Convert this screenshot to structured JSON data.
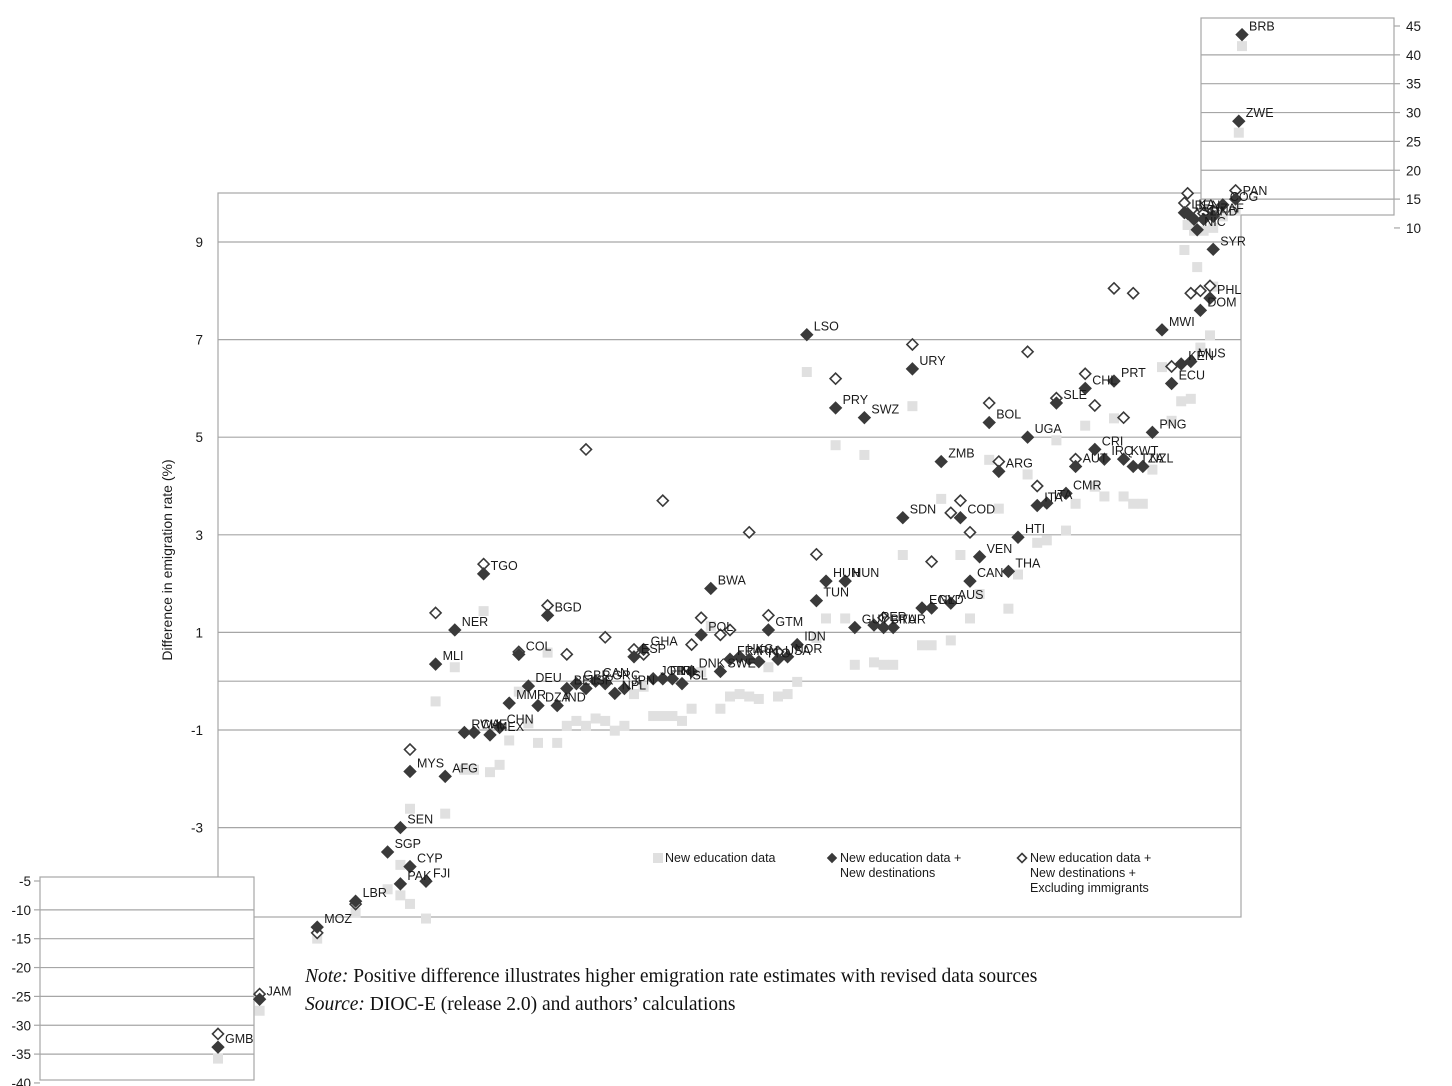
{
  "chart_data": {
    "type": "scatter",
    "ylabel": "Difference in emigration rate (%)",
    "main_panel": {
      "ylim": [
        -5,
        10
      ],
      "yticks": [
        9,
        7,
        5,
        3,
        1,
        -1,
        -3
      ],
      "gridlines": [
        9,
        7,
        5,
        3,
        1,
        -1,
        -3
      ],
      "grid": true
    },
    "inset_top": {
      "ylim": [
        10,
        45
      ],
      "yticks": [
        45,
        40,
        35,
        30,
        25,
        20,
        15,
        10
      ]
    },
    "inset_bottom": {
      "ylim": [
        -40,
        -5
      ],
      "yticks": [
        -5,
        -10,
        -15,
        -20,
        -25,
        -30,
        -35,
        -40
      ]
    },
    "legend": {
      "position": "bottom-right",
      "entries": [
        {
          "key": "new_education",
          "line1": "New education data",
          "line2": "",
          "line3": "",
          "color": "#e0e0e0",
          "marker": "square"
        },
        {
          "key": "new_destinations",
          "line1": "New education data +",
          "line2": "New destinations",
          "line3": "",
          "color": "#3a3a3a",
          "marker": "diamond-filled"
        },
        {
          "key": "excluding_immigrants",
          "line1": "New education data +",
          "line2": "New destinations +",
          "line3": "Excluding immigrants",
          "color": "#3a3a3a",
          "marker": "diamond-open"
        }
      ]
    },
    "series_note": "Countries ordered along x by 'New education data' value; each labelled point shows the 'New education data + New destinations' estimate; open diamonds show 'Excluding immigrants'.",
    "labeled_points": [
      {
        "label": "GMB",
        "panel": "bottom",
        "x": 0,
        "y": -33.8,
        "excl": -31.5
      },
      {
        "label": "JAM",
        "panel": "bottom",
        "x": 13,
        "y": -25.5,
        "excl": -24.6
      },
      {
        "label": "MOZ",
        "panel": "bottom",
        "x": 31,
        "y": -13.0,
        "excl": -14.0
      },
      {
        "label": "LBR",
        "panel": "bottom",
        "x": 43,
        "y": -8.5,
        "excl": -9.0
      },
      {
        "label": "PAK",
        "panel": "bottom",
        "x": 57,
        "y": -5.5,
        "excl": null
      },
      {
        "label": "FJI",
        "panel": "main",
        "x": 65,
        "y": -4.1,
        "excl": null
      },
      {
        "label": "CYP",
        "panel": "main",
        "x": 60,
        "y": -3.8,
        "excl": null
      },
      {
        "label": "SGP",
        "panel": "main",
        "x": 53,
        "y": -3.5,
        "excl": null
      },
      {
        "label": "SEN",
        "panel": "main",
        "x": 57,
        "y": -3.0,
        "excl": null
      },
      {
        "label": "MYS",
        "panel": "main",
        "x": 60,
        "y": -1.85,
        "excl": -1.4
      },
      {
        "label": "AFG",
        "panel": "main",
        "x": 71,
        "y": -1.95,
        "excl": null
      },
      {
        "label": "RWA",
        "panel": "main",
        "x": 77,
        "y": -1.05,
        "excl": null
      },
      {
        "label": "CHE",
        "panel": "main",
        "x": 80,
        "y": -1.05,
        "excl": null
      },
      {
        "label": "MEX",
        "panel": "main",
        "x": 85,
        "y": -1.1,
        "excl": null
      },
      {
        "label": "CHN",
        "panel": "main",
        "x": 88,
        "y": -0.95,
        "excl": null
      },
      {
        "label": "MMR",
        "panel": "main",
        "x": 91,
        "y": -0.45,
        "excl": null
      },
      {
        "label": "MLI",
        "panel": "main",
        "x": 68,
        "y": 0.35,
        "excl": 1.4
      },
      {
        "label": "NER",
        "panel": "main",
        "x": 74,
        "y": 1.05,
        "excl": null
      },
      {
        "label": "TGO",
        "panel": "main",
        "x": 83,
        "y": 2.2,
        "excl": 2.4
      },
      {
        "label": "COL",
        "panel": "main",
        "x": 94,
        "y": 0.55,
        "excl": 0.6
      },
      {
        "label": "DEU",
        "panel": "main",
        "x": 97,
        "y": -0.1,
        "excl": null
      },
      {
        "label": "DZA",
        "panel": "main",
        "x": 100,
        "y": -0.5,
        "excl": null
      },
      {
        "label": "BGD",
        "panel": "main",
        "x": 103,
        "y": 1.35,
        "excl": 1.55
      },
      {
        "label": "IND",
        "panel": "main",
        "x": 106,
        "y": -0.5,
        "excl": null
      },
      {
        "label": "BEL",
        "panel": "main",
        "x": 109,
        "y": -0.15,
        "excl": 0.55
      },
      {
        "label": "GBR",
        "panel": "main",
        "x": 112,
        "y": -0.05,
        "excl": null
      },
      {
        "label": "ISR",
        "panel": "main",
        "x": 115,
        "y": -0.15,
        "excl": 4.75
      },
      {
        "label": "CAN",
        "panel": "main",
        "x": 118,
        "y": 0.0,
        "excl": null
      },
      {
        "label": "GRC",
        "panel": "main",
        "x": 121,
        "y": -0.05,
        "excl": 0.9
      },
      {
        "label": "NPL",
        "panel": "main",
        "x": 124,
        "y": -0.25,
        "excl": null
      },
      {
        "label": "JPN",
        "panel": "main",
        "x": 127,
        "y": -0.15,
        "excl": null
      },
      {
        "label": "ESP",
        "panel": "main",
        "x": 130,
        "y": 0.5,
        "excl": 0.65
      },
      {
        "label": "GHA",
        "panel": "main",
        "x": 133,
        "y": 0.65,
        "excl": 0.55
      },
      {
        "label": "JOR",
        "panel": "main",
        "x": 136,
        "y": 0.05,
        "excl": null
      },
      {
        "label": "FIN",
        "panel": "main",
        "x": 139,
        "y": 0.05,
        "excl": 3.7
      },
      {
        "label": "IRL",
        "panel": "main",
        "x": 142,
        "y": 0.05,
        "excl": null
      },
      {
        "label": "ISL",
        "panel": "main",
        "x": 145,
        "y": -0.05,
        "excl": null
      },
      {
        "label": "DNK",
        "panel": "main",
        "x": 148,
        "y": 0.2,
        "excl": 0.75
      },
      {
        "label": "POL",
        "panel": "main",
        "x": 151,
        "y": 0.95,
        "excl": 1.3
      },
      {
        "label": "BWA",
        "panel": "main",
        "x": 154,
        "y": 1.9,
        "excl": null
      },
      {
        "label": "SWE",
        "panel": "main",
        "x": 157,
        "y": 0.2,
        "excl": 0.95
      },
      {
        "label": "FRA",
        "panel": "main",
        "x": 160,
        "y": 0.45,
        "excl": 1.05
      },
      {
        "label": "HKG",
        "panel": "main",
        "x": 163,
        "y": 0.5,
        "excl": null
      },
      {
        "label": "IRN",
        "panel": "main",
        "x": 166,
        "y": 0.45,
        "excl": 3.05
      },
      {
        "label": "TTO",
        "panel": "main",
        "x": 169,
        "y": 0.4,
        "excl": null
      },
      {
        "label": "GTM",
        "panel": "main",
        "x": 172,
        "y": 1.05,
        "excl": 1.35
      },
      {
        "label": "USA",
        "panel": "main",
        "x": 175,
        "y": 0.45,
        "excl": 0.6
      },
      {
        "label": "NOR",
        "panel": "main",
        "x": 178,
        "y": 0.5,
        "excl": null
      },
      {
        "label": "IDN",
        "panel": "main",
        "x": 181,
        "y": 0.75,
        "excl": null
      },
      {
        "label": "LSO",
        "panel": "main",
        "x": 184,
        "y": 7.1,
        "excl": null
      },
      {
        "label": "TUN",
        "panel": "main",
        "x": 187,
        "y": 1.65,
        "excl": 2.6
      },
      {
        "label": "HUN",
        "panel": "main",
        "x": 190,
        "y": 2.05,
        "excl": null
      },
      {
        "label": "PRY",
        "panel": "main",
        "x": 193,
        "y": 5.6,
        "excl": 6.2
      },
      {
        "label": "HUN2",
        "panel": "main",
        "x": 196,
        "y": 2.05,
        "excl": null
      },
      {
        "label": "GUY",
        "panel": "main",
        "x": 199,
        "y": 1.1,
        "excl": null
      },
      {
        "label": "SWZ",
        "panel": "main",
        "x": 202,
        "y": 5.4,
        "excl": null
      },
      {
        "label": "PER",
        "panel": "main",
        "x": 205,
        "y": 1.15,
        "excl": null
      },
      {
        "label": "BRA",
        "panel": "main",
        "x": 208,
        "y": 1.1,
        "excl": 1.3
      },
      {
        "label": "TUR",
        "panel": "main",
        "x": 211,
        "y": 1.1,
        "excl": null
      },
      {
        "label": "SDN",
        "panel": "main",
        "x": 214,
        "y": 3.35,
        "excl": null
      },
      {
        "label": "URY",
        "panel": "main",
        "x": 217,
        "y": 6.4,
        "excl": 6.9
      },
      {
        "label": "EGY",
        "panel": "main",
        "x": 220,
        "y": 1.5,
        "excl": null
      },
      {
        "label": "NLD",
        "panel": "main",
        "x": 223,
        "y": 1.5,
        "excl": 2.45
      },
      {
        "label": "ZMB",
        "panel": "main",
        "x": 226,
        "y": 4.5,
        "excl": null
      },
      {
        "label": "AUS",
        "panel": "main",
        "x": 229,
        "y": 1.6,
        "excl": 3.45
      },
      {
        "label": "COD",
        "panel": "main",
        "x": 232,
        "y": 3.35,
        "excl": 3.7
      },
      {
        "label": "CAN2",
        "panel": "main",
        "x": 235,
        "y": 2.05,
        "excl": 3.05
      },
      {
        "label": "VEN",
        "panel": "main",
        "x": 238,
        "y": 2.55,
        "excl": null
      },
      {
        "label": "BOL",
        "panel": "main",
        "x": 241,
        "y": 5.3,
        "excl": 5.7
      },
      {
        "label": "ARG",
        "panel": "main",
        "x": 244,
        "y": 4.3,
        "excl": 4.5
      },
      {
        "label": "THA",
        "panel": "main",
        "x": 247,
        "y": 2.25,
        "excl": null
      },
      {
        "label": "HTI",
        "panel": "main",
        "x": 250,
        "y": 2.95,
        "excl": null
      },
      {
        "label": "UGA",
        "panel": "main",
        "x": 253,
        "y": 5.0,
        "excl": 6.75
      },
      {
        "label": "ITA",
        "panel": "main",
        "x": 256,
        "y": 3.6,
        "excl": 4.0
      },
      {
        "label": "ITA2",
        "panel": "main",
        "x": 259,
        "y": 3.65,
        "excl": null
      },
      {
        "label": "SLE",
        "panel": "main",
        "x": 262,
        "y": 5.7,
        "excl": 5.8
      },
      {
        "label": "CMR",
        "panel": "main",
        "x": 265,
        "y": 3.85,
        "excl": null
      },
      {
        "label": "AUT",
        "panel": "main",
        "x": 268,
        "y": 4.4,
        "excl": 4.55
      },
      {
        "label": "CHL",
        "panel": "main",
        "x": 271,
        "y": 6.0,
        "excl": 6.3
      },
      {
        "label": "CRI",
        "panel": "main",
        "x": 274,
        "y": 4.75,
        "excl": 5.65
      },
      {
        "label": "IRQ",
        "panel": "main",
        "x": 277,
        "y": 4.55,
        "excl": null
      },
      {
        "label": "PRT",
        "panel": "main",
        "x": 280,
        "y": 6.15,
        "excl": 8.05
      },
      {
        "label": "KWT",
        "panel": "main",
        "x": 283,
        "y": 4.55,
        "excl": 5.4
      },
      {
        "label": "TZA",
        "panel": "main",
        "x": 286,
        "y": 4.4,
        "excl": 7.95
      },
      {
        "label": "NZL",
        "panel": "main",
        "x": 289,
        "y": 4.4,
        "excl": null
      },
      {
        "label": "PNG",
        "panel": "main",
        "x": 292,
        "y": 5.1,
        "excl": null
      },
      {
        "label": "MWI",
        "panel": "main",
        "x": 295,
        "y": 7.2,
        "excl": null
      },
      {
        "label": "ECU",
        "panel": "main",
        "x": 298,
        "y": 6.1,
        "excl": 6.45
      },
      {
        "label": "KEN",
        "panel": "main",
        "x": 301,
        "y": 6.5,
        "excl": null
      },
      {
        "label": "MUS",
        "panel": "main",
        "x": 304,
        "y": 6.55,
        "excl": 7.95
      },
      {
        "label": "DOM",
        "panel": "main",
        "x": 307,
        "y": 7.6,
        "excl": 8.0
      },
      {
        "label": "PHL",
        "panel": "main",
        "x": 310,
        "y": 7.85,
        "excl": 8.1
      },
      {
        "label": "SYR",
        "panel": "main",
        "x": 311,
        "y": 8.85,
        "excl": null
      },
      {
        "label": "NIC",
        "panel": "main",
        "x": 306,
        "y": 9.25,
        "excl": 9.55
      },
      {
        "label": "LKA",
        "panel": "main",
        "x": 302,
        "y": 9.6,
        "excl": 9.8
      },
      {
        "label": "BEN",
        "panel": "top",
        "x": 303,
        "y": 12.5,
        "excl": 16.0
      },
      {
        "label": "SLV",
        "panel": "top",
        "x": 305,
        "y": 11.5,
        "excl": null
      },
      {
        "label": "HND",
        "panel": "top",
        "x": 308,
        "y": 11.5,
        "excl": 12.5
      },
      {
        "label": "ZAF",
        "panel": "top",
        "x": 311,
        "y": 12.0,
        "excl": 13.0
      },
      {
        "label": "COG",
        "panel": "top",
        "x": 314,
        "y": 14.0,
        "excl": null
      },
      {
        "label": "PAN",
        "panel": "top",
        "x": 318,
        "y": 15.0,
        "excl": 16.5
      },
      {
        "label": "ZWE",
        "panel": "top",
        "x": 319,
        "y": 28.5,
        "excl": null
      },
      {
        "label": "BRB",
        "panel": "top",
        "x": 320,
        "y": 43.5,
        "excl": null
      }
    ]
  },
  "note": {
    "note_label": "Note:",
    "note_text": " Positive difference illustrates higher emigration rate estimates with revised data sources",
    "source_label": "Source:",
    "source_text": " DIOC-E (release 2.0) and authors’ calculations"
  },
  "colors": {
    "grid": "#a6a6a6",
    "dark": "#3a3a3a",
    "light": "#e0e0e0"
  }
}
